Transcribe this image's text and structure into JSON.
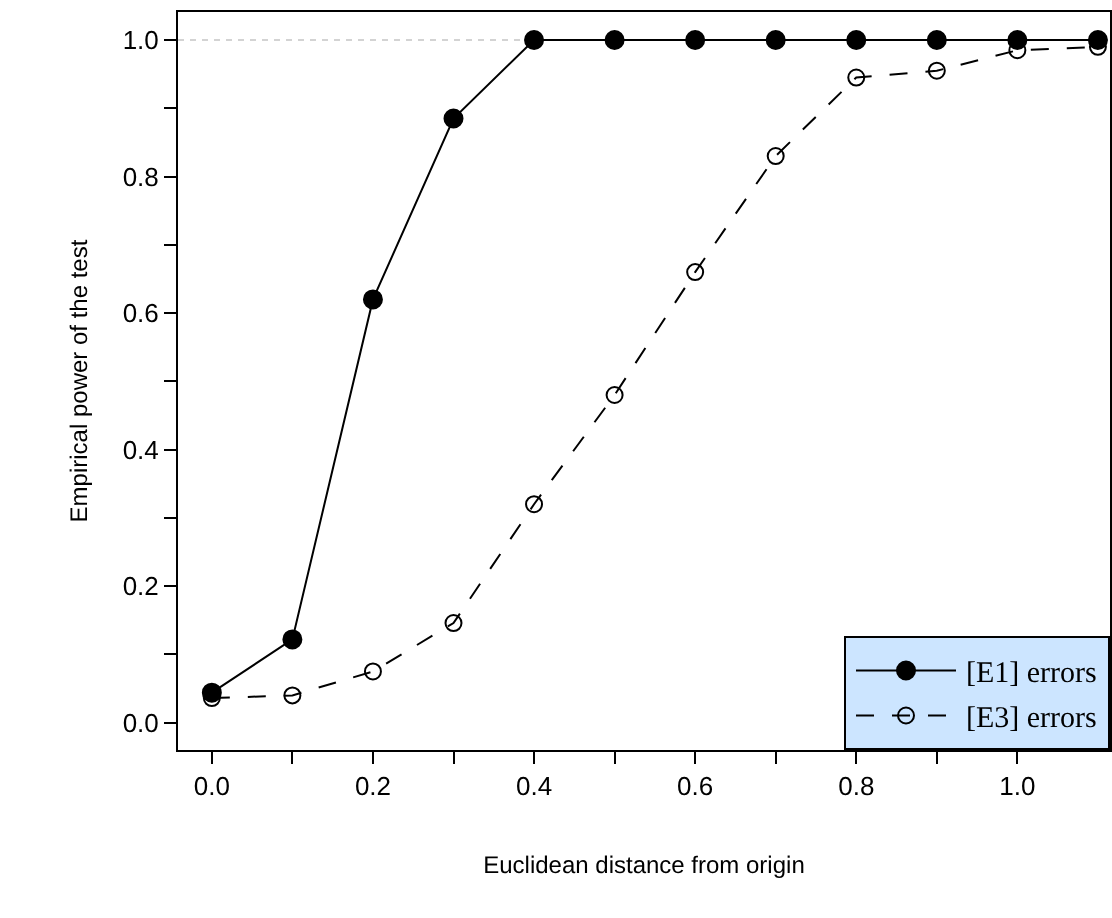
{
  "chart_data": {
    "type": "line",
    "xlabel": "Euclidean distance from origin",
    "ylabel": "Empirical power of the test",
    "x": [
      0.0,
      0.1,
      0.2,
      0.3,
      0.4,
      0.5,
      0.6,
      0.7,
      0.8,
      0.9,
      1.0,
      1.1
    ],
    "series": [
      {
        "name": "[E1] errors",
        "color": "#000000",
        "marker": "circle",
        "line_style": "solid",
        "values": [
          0.044,
          0.122,
          0.62,
          0.885,
          1.0,
          1.0,
          1.0,
          1.0,
          1.0,
          1.0,
          1.0,
          1.0
        ]
      },
      {
        "name": "[E3] errors",
        "color": "#000000",
        "marker": "circle",
        "line_style": "dashed",
        "values": [
          0.036,
          0.04,
          0.075,
          0.146,
          0.32,
          0.48,
          0.66,
          0.83,
          0.945,
          0.955,
          0.985,
          0.99
        ]
      }
    ],
    "xlim": [
      -0.042,
      1.115
    ],
    "ylim": [
      -0.04,
      1.041
    ],
    "xticks": [
      {
        "value": 0.0,
        "label": "0.0"
      },
      {
        "value": 0.1,
        "label": null
      },
      0.2,
      {
        "value": 0.3,
        "label": null
      },
      0.4,
      {
        "value": 0.5,
        "label": null
      },
      0.6,
      {
        "value": 0.7,
        "label": null
      },
      0.8,
      {
        "value": 0.9,
        "label": null
      },
      {
        "value": 1.0,
        "label": "1.0"
      }
    ],
    "yticks": [
      {
        "value": 0.0,
        "label": "0.0"
      },
      {
        "value": 0.1,
        "label": null
      },
      0.2,
      {
        "value": 0.3,
        "label": null
      },
      0.4,
      {
        "value": 0.5,
        "label": null
      },
      0.6,
      {
        "value": 0.7,
        "label": null
      },
      0.8,
      {
        "value": 0.9,
        "label": null
      },
      {
        "value": 1.0,
        "label": "1.0"
      }
    ],
    "ref_lines": [
      {
        "axis": "y",
        "value": 1.0,
        "label": null,
        "color": "#d3d3d3",
        "line_style": "dotted"
      }
    ],
    "legend": "bottom right",
    "grid": false
  }
}
